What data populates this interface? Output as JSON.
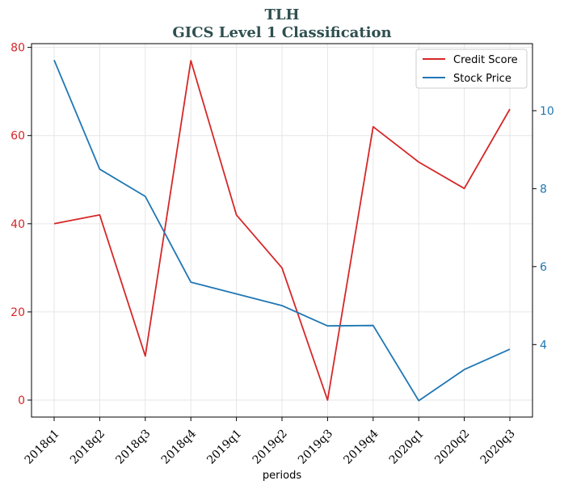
{
  "chart_data": {
    "type": "line",
    "title": "TLH",
    "subtitle": "GICS Level 1 Classification",
    "xlabel": "periods",
    "categories": [
      "2018q1",
      "2018q2",
      "2018q3",
      "2018q4",
      "2019q1",
      "2019q2",
      "2019q3",
      "2019q4",
      "2020q1",
      "2020q2",
      "2020q3"
    ],
    "series": [
      {
        "name": "Credit Score",
        "axis": "left",
        "color": "#d62728",
        "values": [
          40,
          42,
          10,
          77,
          42,
          30,
          0,
          62,
          54,
          48,
          66
        ]
      },
      {
        "name": "Stock Price",
        "axis": "right",
        "color": "#1f77b4",
        "values": [
          11.3,
          8.5,
          7.8,
          5.6,
          5.3,
          5.0,
          4.48,
          4.49,
          2.56,
          3.36,
          3.88
        ]
      }
    ],
    "ylim_left": [
      -3.85,
      80.85
    ],
    "yticks_left": [
      0,
      20,
      40,
      60,
      80
    ],
    "ylim_right": [
      2.14,
      11.72
    ],
    "yticks_right": [
      4,
      6,
      8,
      10
    ],
    "grid": true,
    "legend_position": "top-right"
  }
}
